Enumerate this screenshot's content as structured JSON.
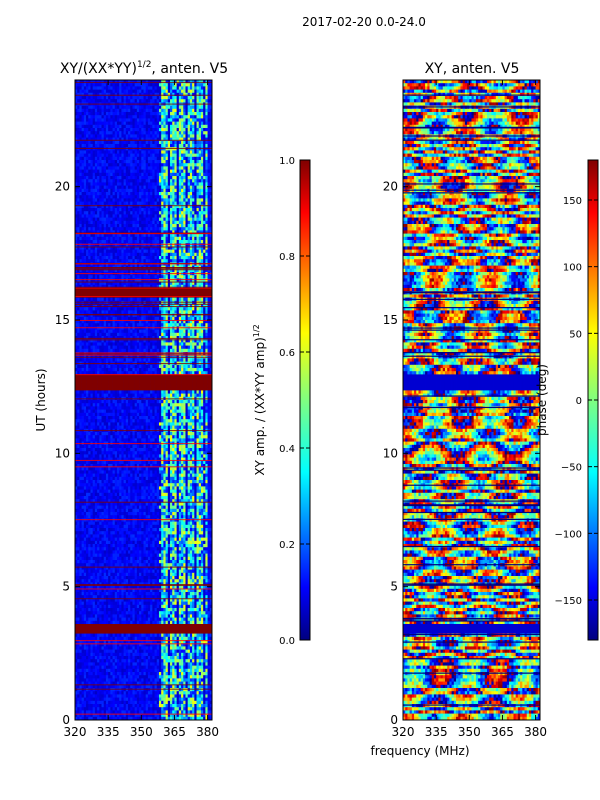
{
  "figure_title": "2017-02-20 0.0-24.0",
  "left_panel": {
    "title_main": "XY/(XX*YY)",
    "title_sup": "1/2",
    "title_tail": ", anten. V5"
  },
  "right_panel": {
    "title": "XY, anten. V5"
  },
  "ylabel": "UT (hours)",
  "xlabel": "frequency (MHz)",
  "cb_left_label_main": "XY amp. / (XX*YY amp)",
  "cb_left_label_sup": "1/2",
  "cb_right_label": "phase (deg)",
  "colors": {
    "dark_red": "#800000",
    "red": "#ff0000",
    "orange": "#ff8000",
    "yellow": "#ffff00",
    "green": "#80ff80",
    "cyan": "#00ffff",
    "blue": "#0000ff",
    "dark_blue": "#00007f"
  },
  "chart_data": [
    {
      "type": "heatmap",
      "title": "XY/(XX*YY)^1/2, anten. V5",
      "xlabel": "",
      "ylabel": "UT (hours)",
      "xlim": [
        320,
        382
      ],
      "ylim": [
        0,
        24
      ],
      "x_ticks": [
        320,
        335,
        350,
        365,
        380
      ],
      "y_ticks": [
        0,
        5,
        10,
        15,
        20
      ],
      "colormap": "jet",
      "colorbar": {
        "label": "XY amp. / (XX*YY amp)^1/2",
        "range": [
          0.0,
          1.0
        ],
        "ticks": [
          "0.0",
          "0.2",
          "0.4",
          "0.6",
          "0.8",
          "1.0"
        ]
      },
      "saturated_bands_hours": [
        [
          3.2,
          3.6
        ],
        [
          12.4,
          13.0
        ],
        [
          15.8,
          16.2
        ]
      ],
      "striped_region_hours": [
        13.0,
        18.4
      ],
      "high_amplitude_freq_range_MHz": [
        358,
        380
      ]
    },
    {
      "type": "heatmap",
      "title": "XY, anten. V5",
      "xlabel": "frequency (MHz)",
      "ylabel": "",
      "xlim": [
        320,
        382
      ],
      "ylim": [
        0,
        24
      ],
      "x_ticks": [
        320,
        335,
        350,
        365,
        380
      ],
      "y_ticks": [
        0,
        5,
        10,
        15,
        20
      ],
      "colormap": "jet",
      "colorbar": {
        "label": "phase (deg)",
        "range": [
          -180,
          180
        ],
        "ticks": [
          "-150",
          "-100",
          "-50",
          "0",
          "50",
          "100",
          "150"
        ]
      },
      "uniform_bands_hours": [
        [
          3.3,
          3.6
        ],
        [
          12.4,
          13.0
        ]
      ]
    }
  ]
}
